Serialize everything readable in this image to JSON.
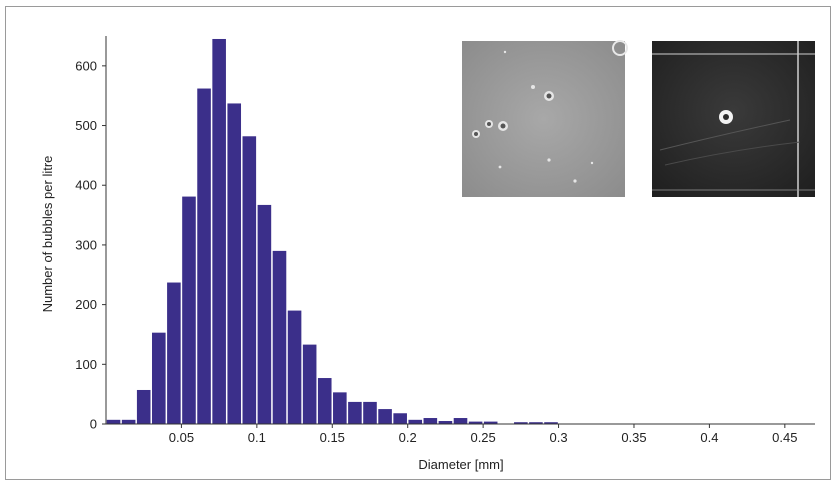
{
  "colors": {
    "bar": "#3b2f8a",
    "axis": "#333333",
    "frame": "#9a9a9a"
  },
  "chart_data": {
    "type": "bar",
    "xlabel": "Diameter [mm]",
    "ylabel": "Number of bubbles per litre",
    "xlim": [
      0,
      0.47
    ],
    "ylim": [
      0,
      650
    ],
    "xticks": [
      0.05,
      0.1,
      0.15,
      0.2,
      0.25,
      0.3,
      0.35,
      0.4,
      0.45
    ],
    "xtick_labels": [
      "0.05",
      "0.1",
      "0.15",
      "0.2",
      "0.25",
      "0.3",
      "0.35",
      "0.4",
      "0.45"
    ],
    "yticks": [
      0,
      100,
      200,
      300,
      400,
      500,
      600
    ],
    "ytick_labels": [
      "0",
      "100",
      "200",
      "300",
      "400",
      "500",
      "600"
    ],
    "bin_width": 0.01,
    "bin_centers": [
      0.005,
      0.015,
      0.025,
      0.035,
      0.045,
      0.055,
      0.065,
      0.075,
      0.085,
      0.095,
      0.105,
      0.115,
      0.125,
      0.135,
      0.145,
      0.155,
      0.165,
      0.175,
      0.185,
      0.195,
      0.205,
      0.215,
      0.225,
      0.235,
      0.245,
      0.255,
      0.265,
      0.275,
      0.285,
      0.295
    ],
    "values": [
      7,
      7,
      57,
      153,
      237,
      381,
      562,
      645,
      537,
      482,
      367,
      290,
      190,
      133,
      77,
      53,
      37,
      37,
      25,
      18,
      7,
      10,
      5,
      10,
      4,
      4,
      0,
      3,
      3,
      3
    ],
    "grid": false
  },
  "insets": [
    {
      "name": "bubbles-photo-grey"
    },
    {
      "name": "bubble-photo-dark"
    }
  ]
}
